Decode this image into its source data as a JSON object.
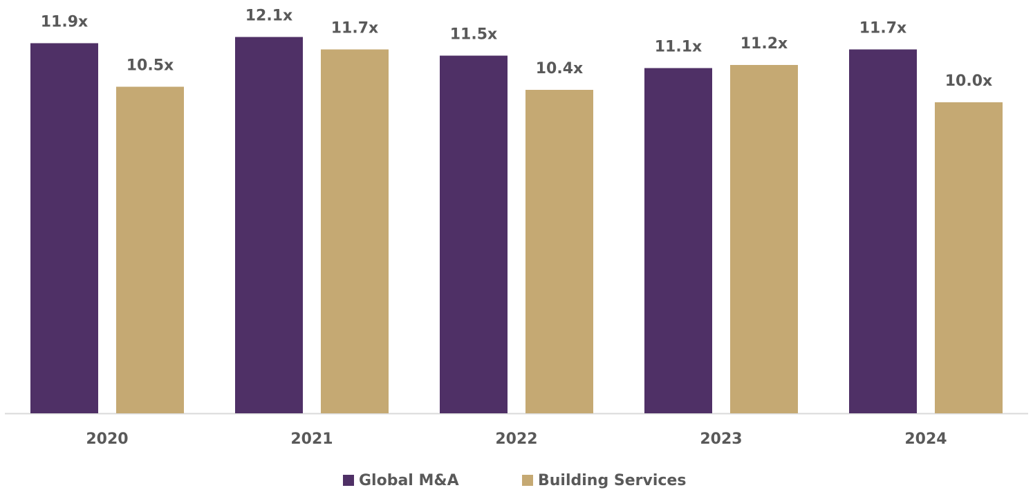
{
  "chart_data": {
    "type": "bar",
    "categories": [
      "2020",
      "2021",
      "2022",
      "2023",
      "2024"
    ],
    "series": [
      {
        "name": "Global M&A",
        "color": "#4f3066",
        "values": [
          11.9,
          12.1,
          11.5,
          11.1,
          11.7
        ],
        "value_labels": [
          "11.9x",
          "12.1x",
          "11.5x",
          "11.1x",
          "11.7x"
        ]
      },
      {
        "name": "Building Services",
        "color": "#c5a973",
        "values": [
          10.5,
          11.7,
          10.4,
          11.2,
          10.0
        ],
        "value_labels": [
          "10.5x",
          "11.7x",
          "10.4x",
          "11.2x",
          "10.0x"
        ]
      }
    ],
    "ylim": [
      0,
      13
    ],
    "legend": "bottom"
  }
}
